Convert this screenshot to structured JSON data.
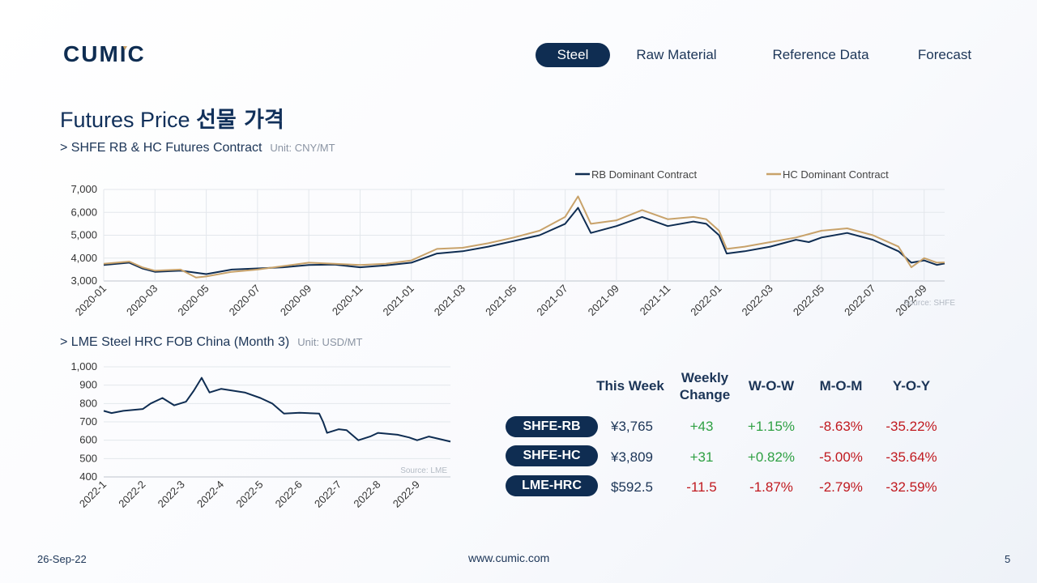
{
  "logo_text": "CUMIC",
  "nav": [
    {
      "label": "Steel",
      "active": true
    },
    {
      "label": "Raw Material",
      "active": false
    },
    {
      "label": "Reference Data",
      "active": false
    },
    {
      "label": "Forecast",
      "active": false
    }
  ],
  "page": {
    "title_en": "Futures Price",
    "title_ko": "선물 가격",
    "date": "26-Sep-22",
    "site": "www.cumic.com",
    "page_number": "5"
  },
  "section1": {
    "title": "> SHFE RB & HC Futures Contract",
    "unit": "Unit: CNY/MT"
  },
  "section2": {
    "title": "> LME Steel HRC FOB China (Month 3)",
    "unit": "Unit: USD/MT"
  },
  "table": {
    "headers": {
      "this_week": "This Week",
      "weekly_change_1": "Weekly",
      "weekly_change_2": "Change",
      "wow": "W-O-W",
      "mom": "M-O-M",
      "yoy": "Y-O-Y"
    },
    "rows": [
      {
        "name": "SHFE-RB",
        "price": "¥3,765",
        "change": "+43",
        "wow": "+1.15%",
        "mom": "-8.63%",
        "yoy": "-35.22%"
      },
      {
        "name": "SHFE-HC",
        "price": "¥3,809",
        "change": "+31",
        "wow": "+0.82%",
        "mom": "-5.00%",
        "yoy": "-35.64%"
      },
      {
        "name": "LME-HRC",
        "price": "$592.5",
        "change": "-11.5",
        "wow": "-1.87%",
        "mom": "-2.79%",
        "yoy": "-32.59%"
      }
    ]
  },
  "chart_data": [
    {
      "type": "line",
      "source": "Source:  SHFE",
      "ylim": [
        3000,
        7000
      ],
      "y_ticks": [
        3000,
        4000,
        5000,
        6000,
        7000
      ],
      "x_ticks": [
        "2020-01",
        "2020-03",
        "2020-05",
        "2020-07",
        "2020-09",
        "2020-11",
        "2021-01",
        "2021-03",
        "2021-05",
        "2021-07",
        "2021-09",
        "2021-11",
        "2022-01",
        "2022-03",
        "2022-05",
        "2022-07",
        "2022-09"
      ],
      "x_range": [
        0,
        32.8
      ],
      "colors": [
        "#0f2d52",
        "#c8a26a"
      ],
      "series": [
        {
          "name": "RB Dominant Contract",
          "points": [
            [
              0,
              3700
            ],
            [
              1,
              3800
            ],
            [
              1.5,
              3550
            ],
            [
              2,
              3400
            ],
            [
              3,
              3450
            ],
            [
              4,
              3300
            ],
            [
              5,
              3500
            ],
            [
              6,
              3550
            ],
            [
              7,
              3600
            ],
            [
              8,
              3700
            ],
            [
              9,
              3720
            ],
            [
              10,
              3600
            ],
            [
              11,
              3680
            ],
            [
              12,
              3800
            ],
            [
              13,
              4200
            ],
            [
              14,
              4300
            ],
            [
              15,
              4500
            ],
            [
              16,
              4750
            ],
            [
              17,
              5000
            ],
            [
              18,
              5500
            ],
            [
              18.5,
              6200
            ],
            [
              19,
              5100
            ],
            [
              20,
              5400
            ],
            [
              21,
              5800
            ],
            [
              22,
              5400
            ],
            [
              23,
              5600
            ],
            [
              23.5,
              5500
            ],
            [
              24,
              5000
            ],
            [
              24.3,
              4200
            ],
            [
              25,
              4300
            ],
            [
              26,
              4500
            ],
            [
              27,
              4800
            ],
            [
              27.5,
              4700
            ],
            [
              28,
              4900
            ],
            [
              29,
              5100
            ],
            [
              30,
              4800
            ],
            [
              31,
              4300
            ],
            [
              31.5,
              3800
            ],
            [
              32,
              3900
            ],
            [
              32.5,
              3700
            ],
            [
              32.8,
              3765
            ]
          ]
        },
        {
          "name": "HC Dominant Contract",
          "points": [
            [
              0,
              3750
            ],
            [
              1,
              3850
            ],
            [
              1.5,
              3600
            ],
            [
              2,
              3450
            ],
            [
              3,
              3500
            ],
            [
              3.6,
              3150
            ],
            [
              4,
              3200
            ],
            [
              5,
              3400
            ],
            [
              6,
              3500
            ],
            [
              7,
              3650
            ],
            [
              8,
              3800
            ],
            [
              9,
              3750
            ],
            [
              10,
              3700
            ],
            [
              11,
              3750
            ],
            [
              12,
              3900
            ],
            [
              13,
              4400
            ],
            [
              14,
              4450
            ],
            [
              15,
              4650
            ],
            [
              16,
              4900
            ],
            [
              17,
              5200
            ],
            [
              18,
              5800
            ],
            [
              18.5,
              6700
            ],
            [
              19,
              5500
            ],
            [
              20,
              5650
            ],
            [
              21,
              6100
            ],
            [
              22,
              5700
            ],
            [
              23,
              5800
            ],
            [
              23.5,
              5700
            ],
            [
              24,
              5200
            ],
            [
              24.3,
              4400
            ],
            [
              25,
              4500
            ],
            [
              26,
              4700
            ],
            [
              27,
              4900
            ],
            [
              27.5,
              5050
            ],
            [
              28,
              5200
            ],
            [
              29,
              5300
            ],
            [
              30,
              5000
            ],
            [
              31,
              4500
            ],
            [
              31.5,
              3600
            ],
            [
              32,
              4000
            ],
            [
              32.5,
              3800
            ],
            [
              32.8,
              3809
            ]
          ]
        }
      ]
    },
    {
      "type": "line",
      "source": "Source:  LME",
      "ylim": [
        400,
        1000
      ],
      "y_ticks": [
        400,
        500,
        600,
        700,
        800,
        900,
        1000
      ],
      "x_ticks": [
        "2022-1",
        "2022-2",
        "2022-3",
        "2022-4",
        "2022-5",
        "2022-6",
        "2022-7",
        "2022-8",
        "2022-9"
      ],
      "x_range": [
        0,
        8.85
      ],
      "colors": [
        "#0f2d52"
      ],
      "series": [
        {
          "points": [
            [
              0,
              760
            ],
            [
              0.2,
              748
            ],
            [
              0.5,
              760
            ],
            [
              1,
              770
            ],
            [
              1.2,
              800
            ],
            [
              1.5,
              830
            ],
            [
              1.8,
              790
            ],
            [
              2.1,
              810
            ],
            [
              2.3,
              870
            ],
            [
              2.5,
              940
            ],
            [
              2.7,
              860
            ],
            [
              3,
              880
            ],
            [
              3.3,
              870
            ],
            [
              3.6,
              860
            ],
            [
              4,
              830
            ],
            [
              4.3,
              800
            ],
            [
              4.6,
              745
            ],
            [
              5,
              750
            ],
            [
              5.5,
              745
            ],
            [
              5.6,
              700
            ],
            [
              5.7,
              640
            ],
            [
              6,
              660
            ],
            [
              6.2,
              655
            ],
            [
              6.5,
              600
            ],
            [
              6.8,
              620
            ],
            [
              7,
              640
            ],
            [
              7.5,
              630
            ],
            [
              7.8,
              615
            ],
            [
              8,
              600
            ],
            [
              8.3,
              620
            ],
            [
              8.6,
              605
            ],
            [
              8.85,
              592.5
            ]
          ]
        }
      ]
    }
  ]
}
